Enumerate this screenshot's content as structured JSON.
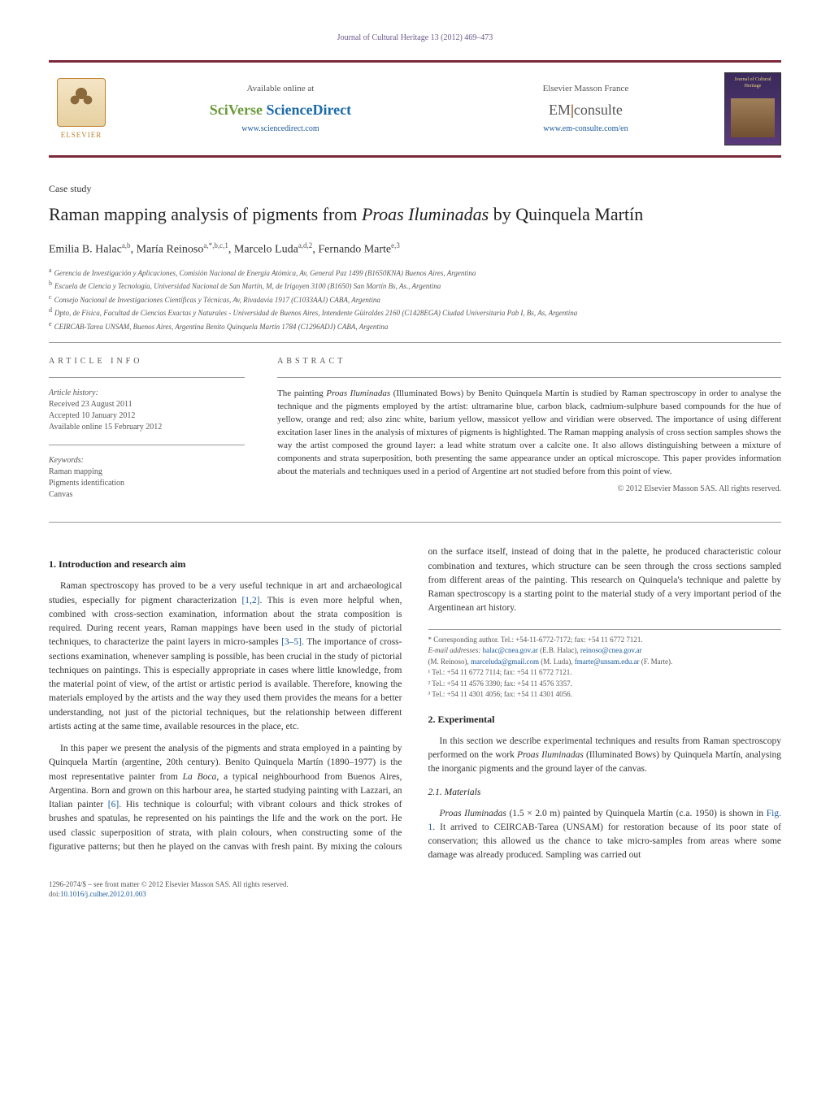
{
  "running_head": "Journal of Cultural Heritage 13 (2012) 469–473",
  "header": {
    "elsevier": "ELSEVIER",
    "available": "Available online at",
    "sciverse_a": "SciVerse ",
    "sciverse_b": "ScienceDirect",
    "sd_url": "www.sciencedirect.com",
    "masson": "Elsevier Masson France",
    "em_a": "EM",
    "em_b": "consulte",
    "em_url": "www.em-consulte.com/en",
    "cover_title": "Journal of Cultural Heritage"
  },
  "article": {
    "type": "Case study",
    "title_a": "Raman mapping analysis of pigments from ",
    "title_ital": "Proas Iluminadas",
    "title_b": " by Quinquela Martín",
    "authors_html": "Emilia B. Halac",
    "a1_sup": "a,b",
    "a2": ", María Reinoso",
    "a2_sup": "a,*,b,c,1",
    "a3": ", Marcelo Luda",
    "a3_sup": "a,d,2",
    "a4": ", Fernando Marte",
    "a4_sup": "e,3",
    "affiliations": {
      "a": "Gerencia de Investigación y Aplicaciones, Comisión Nacional de Energía Atómica, Av, General Paz 1499 (B1650KNA) Buenos Aires, Argentina",
      "b": "Escuela de Ciencia y Tecnología, Universidad Nacional de San Martín, M, de Irigoyen 3100 (B1650) San Martín Bs, As., Argentina",
      "c": "Consejo Nacional de Investigaciones Científicas y Técnicas, Av, Rivadavia 1917 (C1033AAJ) CABA, Argentina",
      "d": "Dpto, de Física, Facultad de Ciencias Exactas y Naturales - Universidad de Buenos Aires, Intendente Güiraldes 2160 (C1428EGA) Ciudad Universitaria Pab I, Bs, As, Argentina",
      "e": "CEIRCAB-Tarea UNSAM, Buenos Aires, Argentina Benito Quinquela Martín 1784 (C1296ADJ) CABA, Argentina"
    }
  },
  "info": {
    "label": "ARTICLE INFO",
    "history_label": "Article history:",
    "received": "Received 23 August 2011",
    "accepted": "Accepted 10 January 2012",
    "online": "Available online 15 February 2012",
    "keywords_label": "Keywords:",
    "kw1": "Raman mapping",
    "kw2": "Pigments identification",
    "kw3": "Canvas"
  },
  "abstract": {
    "label": "ABSTRACT",
    "text_a": "The painting ",
    "text_ital": "Proas Iluminadas",
    "text_b": " (Illuminated Bows) by Benito Quinquela Martín is studied by Raman spectroscopy in order to analyse the technique and the pigments employed by the artist: ultramarine blue, carbon black, cadmium-sulphure based compounds for the hue of yellow, orange and red; also zinc white, barium yellow, massicot yellow and viridian were observed. The importance of using different excitation laser lines in the analysis of mixtures of pigments is highlighted. The Raman mapping analysis of cross section samples shows the way the artist composed the ground layer: a lead white stratum over a calcite one. It also allows distinguishing between a mixture of components and strata superposition, both presenting the same appearance under an optical microscope. This paper provides information about the materials and techniques used in a period of Argentine art not studied before from this point of view.",
    "copyright": "© 2012 Elsevier Masson SAS. All rights reserved."
  },
  "sections": {
    "s1_title": "1. Introduction and research aim",
    "s1_p1_a": "Raman spectroscopy has proved to be a very useful technique in art and archaeological studies, especially for pigment characterization ",
    "s1_p1_cite1": "[1,2]",
    "s1_p1_b": ". This is even more helpful when, combined with cross-section examination, information about the strata composition is required. During recent years, Raman mappings have been used in the study of pictorial techniques, to characterize the paint layers in micro-samples ",
    "s1_p1_cite2": "[3–5]",
    "s1_p1_c": ". The importance of cross-sections examination, whenever sampling is possible, has been crucial in the study of pictorial techniques on paintings. This is especially appropriate in cases where little knowledge, from the material point of view, of the artist or artistic period is available. Therefore, knowing the materials employed by the artists and the way they used them provides the means for a better understanding, not just of the pictorial techniques, but the relationship between different artists acting at the same time, available resources in the place, etc.",
    "s1_p2_a": "In this paper we present the analysis of the pigments and strata employed in a painting by Quinquela Martín (argentine, 20th century). Benito Quinquela Martín (1890–1977) is the most representative painter from ",
    "s1_p2_ital": "La Boca",
    "s1_p2_b": ", a typical neighbourhood from ",
    "s1_continue_a": "Buenos Aires, Argentina. Born and grown on this harbour area, he started studying painting with Lazzari, an Italian painter ",
    "s1_continue_cite": "[6]",
    "s1_continue_b": ". His technique is colourful; with vibrant colours and thick strokes of brushes and spatulas, he represented on his paintings the life and the work on the port. He used classic superposition of strata, with plain colours, when constructing some of the figurative patterns; but then he played on the canvas with fresh paint. By mixing the colours on the surface itself, instead of doing that in the palette, he produced characteristic colour combination and textures, which structure can be seen through the cross sections sampled from different areas of the painting. This research on Quinquela's technique and palette by Raman spectroscopy is a starting point to the material study of a very important period of the Argentinean art history.",
    "s2_title": "2. Experimental",
    "s2_p1_a": "In this section we describe experimental techniques and results from Raman spectroscopy performed on the work ",
    "s2_p1_ital": "Proas Iluminadas",
    "s2_p1_b": " (Illuminated Bows) by Quinquela Martín, analysing the inorganic pigments and the ground layer of the canvas.",
    "s21_title": "2.1. Materials",
    "s21_p1_ital": "Proas Iluminadas",
    "s21_p1_a": " (1.5 × 2.0 m) painted by Quinquela Martín (c.a. 1950) is shown in ",
    "s21_p1_cite": "Fig. 1",
    "s21_p1_b": ". It arrived to CEIRCAB-Tarea (UNSAM) for restoration because of its poor state of conservation; this allowed us the chance to take micro-samples from areas where some damage was already produced. Sampling was carried out"
  },
  "footnotes": {
    "corr": "* Corresponding author. Tel.: +54-11-6772-7172; fax: +54 11 6772 7121.",
    "email_label": "E-mail addresses:",
    "e1": "halac@cnea.gov.ar",
    "e1_who": " (E.B. Halac), ",
    "e2": "reinoso@cnea.gov.ar",
    "e2_who_a": " (M. Reinoso), ",
    "e3": "marceluda@gmail.com",
    "e3_who": " (M. Luda), ",
    "e4": "fmarte@unsam.edu.ar",
    "e4_who": " (F. Marte).",
    "n1": "¹ Tel.: +54 11 6772 7114; fax: +54 11 6772 7121.",
    "n2": "² Tel.: +54 11 4576 3390; fax: +54 11 4576 3357.",
    "n3": "³ Tel.: +54 11 4301 4056; fax: +54 11 4301 4056."
  },
  "footer": {
    "line1": "1296-2074/$ – see front matter © 2012 Elsevier Masson SAS. All rights reserved.",
    "doi_label": "doi:",
    "doi": "10.1016/j.culher.2012.01.003"
  },
  "colors": {
    "rule": "#7a2a3a",
    "link": "#1a5a9a",
    "muted": "#555555",
    "text": "#333333"
  }
}
